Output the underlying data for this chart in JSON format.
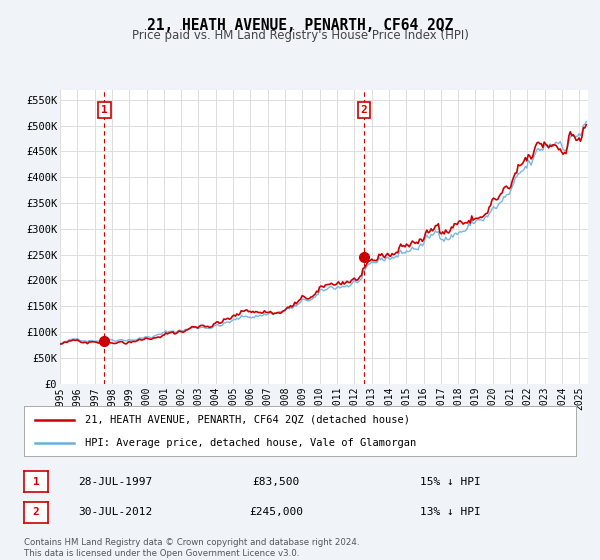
{
  "title": "21, HEATH AVENUE, PENARTH, CF64 2QZ",
  "subtitle": "Price paid vs. HM Land Registry's House Price Index (HPI)",
  "hpi_color": "#6ab0de",
  "price_color": "#cc0000",
  "marker_color": "#cc0000",
  "background_color": "#f0f4f8",
  "ylim": [
    0,
    570000
  ],
  "xlim_start": 1995.0,
  "xlim_end": 2025.5,
  "yticks": [
    0,
    50000,
    100000,
    150000,
    200000,
    250000,
    300000,
    350000,
    400000,
    450000,
    500000,
    550000
  ],
  "ytick_labels": [
    "£0",
    "£50K",
    "£100K",
    "£150K",
    "£200K",
    "£250K",
    "£300K",
    "£350K",
    "£400K",
    "£450K",
    "£500K",
    "£550K"
  ],
  "xticks": [
    1995,
    1996,
    1997,
    1998,
    1999,
    2000,
    2001,
    2002,
    2003,
    2004,
    2005,
    2006,
    2007,
    2008,
    2009,
    2010,
    2011,
    2012,
    2013,
    2014,
    2015,
    2016,
    2017,
    2018,
    2019,
    2020,
    2021,
    2022,
    2023,
    2024,
    2025
  ],
  "sale1_date": 1997.57,
  "sale1_price": 83500,
  "sale1_label": "1",
  "sale1_text": "28-JUL-1997",
  "sale1_price_str": "£83,500",
  "sale1_pct": "15% ↓ HPI",
  "sale2_date": 2012.57,
  "sale2_price": 245000,
  "sale2_label": "2",
  "sale2_text": "30-JUL-2012",
  "sale2_price_str": "£245,000",
  "sale2_pct": "13% ↓ HPI",
  "legend_line1": "21, HEATH AVENUE, PENARTH, CF64 2QZ (detached house)",
  "legend_line2": "HPI: Average price, detached house, Vale of Glamorgan",
  "footer1": "Contains HM Land Registry data © Crown copyright and database right 2024.",
  "footer2": "This data is licensed under the Open Government Licence v3.0."
}
